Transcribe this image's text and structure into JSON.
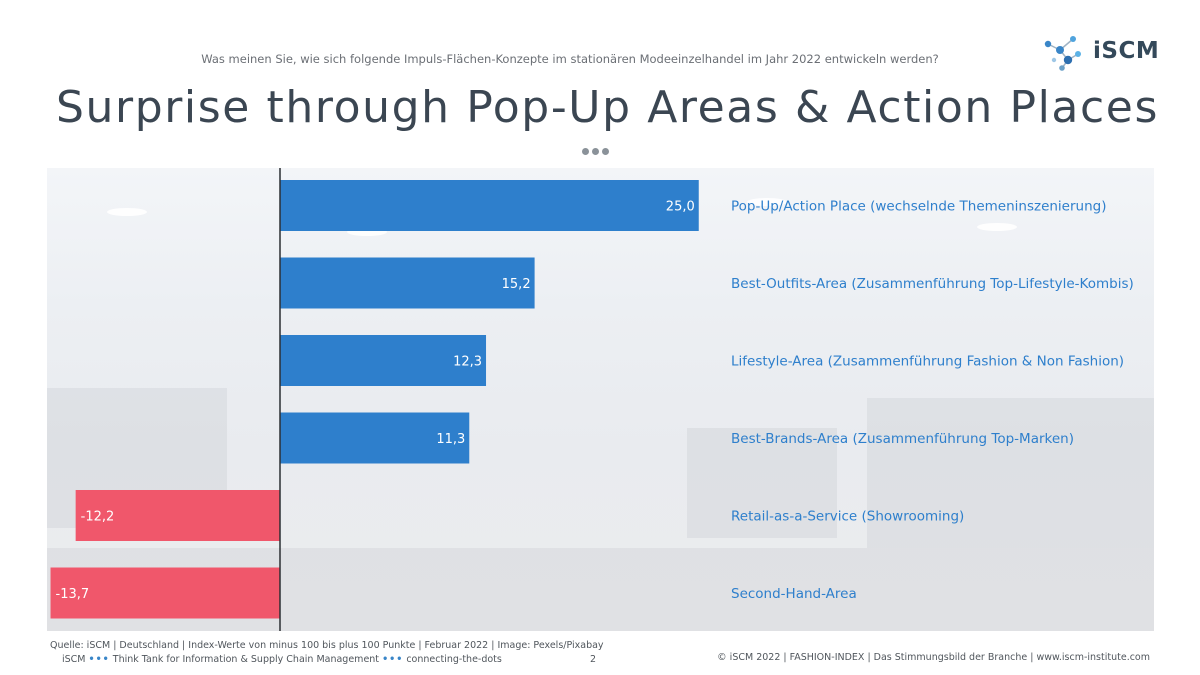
{
  "header": {
    "question": "Was meinen Sie, wie sich folgende Impuls-Flächen-Konzepte im stationären Modeeinzelhandel im Jahr 2022 entwickeln werden?",
    "logo_text": "iSCM",
    "title": "Surprise through Pop-Up Areas & Action Places"
  },
  "chart_data": {
    "type": "bar",
    "orientation": "horizontal",
    "categories": [
      "Pop-Up/Action Place (wechselnde Themeninszenierung)",
      "Best-Outfits-Area (Zusammenführung Top-Lifestyle-Kombis)",
      "Lifestyle-Area (Zusammenführung Fashion & Non Fashion)",
      "Best-Brands-Area (Zusammenführung Top-Marken)",
      "Retail-as-a-Service (Showrooming)",
      "Second-Hand-Area"
    ],
    "values": [
      25.0,
      15.2,
      12.3,
      11.3,
      -12.2,
      -13.7
    ],
    "value_labels": [
      "25,0",
      "15,2",
      "12,3",
      "11,3",
      "-12,2",
      "-13,7"
    ],
    "xlim": [
      -14,
      25
    ],
    "colors": {
      "positive": "#2e7fcc",
      "negative": "#f0576b",
      "category_text": "#2e7fcc",
      "axis": "#2b2f33"
    },
    "grid": false,
    "legend": "none"
  },
  "footer": {
    "source": "Quelle: iSCM | Deutschland | Index-Werte von minus 100 bis plus 100 Punkte  |  Februar 2022  |  Image: Pexels/Pixabay",
    "think_tank_prefix": "iSCM",
    "think_tank_middle": "Think Tank for Information & Supply Chain Management",
    "think_tank_suffix": "connecting-the-dots",
    "dots": "•••",
    "page": "2",
    "copyright": "© iSCM 2022  |  FASHION-INDEX  |  Das Stimmungsbild der Branche  |  www.iscm-institute.com"
  }
}
